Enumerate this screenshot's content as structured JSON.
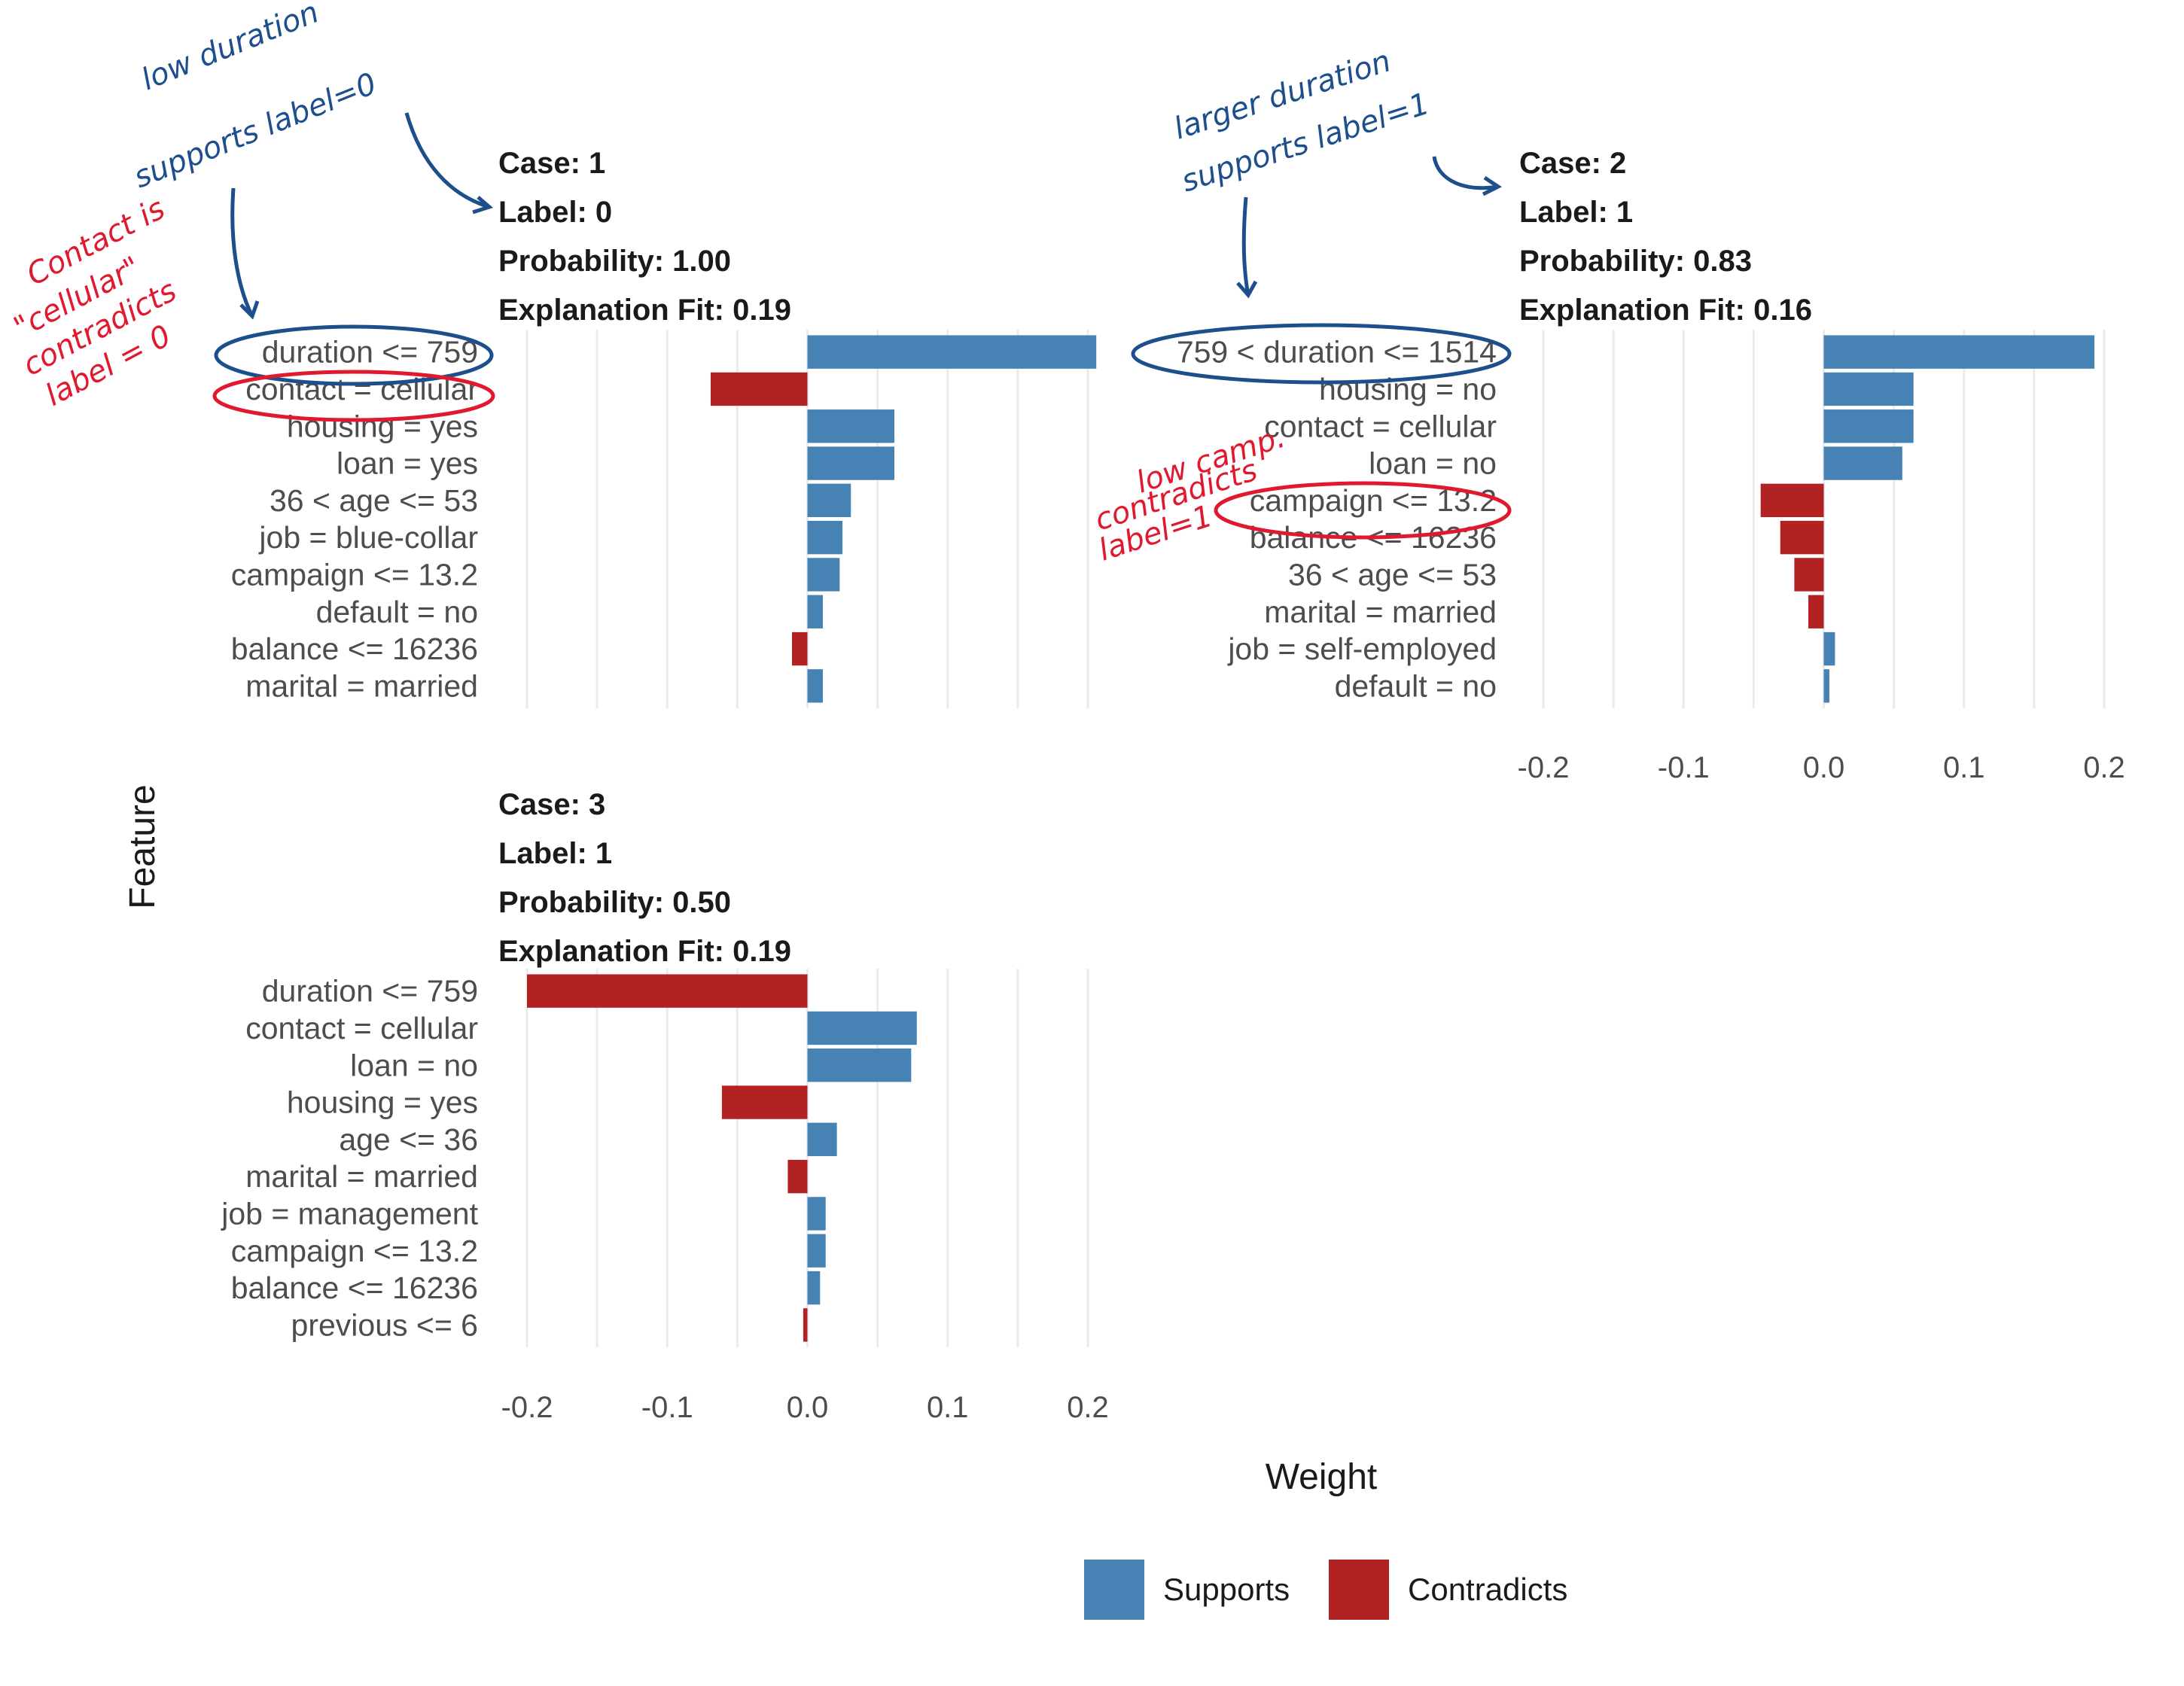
{
  "chart_data": [
    {
      "type": "bar",
      "orientation": "horizontal",
      "case_label": "Case: 1",
      "label_label": "Label: 0",
      "probability_label": "Probability: 1.00",
      "fit_label": "Explanation Fit: 0.19",
      "features": [
        "duration <= 759",
        "contact = cellular",
        "housing = yes",
        "loan = yes",
        "36 < age <= 53",
        "job = blue-collar",
        "campaign <= 13.2",
        "default = no",
        "balance <= 16236",
        "marital = married"
      ],
      "values": [
        0.206,
        -0.069,
        0.062,
        0.062,
        0.031,
        0.025,
        0.023,
        0.011,
        -0.011,
        0.011
      ],
      "xlim": [
        -0.2,
        0.2
      ],
      "show_x_axis": false
    },
    {
      "type": "bar",
      "orientation": "horizontal",
      "case_label": "Case: 2",
      "label_label": "Label: 1",
      "probability_label": "Probability: 0.83",
      "fit_label": "Explanation Fit: 0.16",
      "features": [
        "759 < duration <= 1514",
        "housing = no",
        "contact = cellular",
        "loan = no",
        "campaign <= 13.2",
        "balance <= 16236",
        "36 < age <= 53",
        "marital = married",
        "job = self-employed",
        "default = no"
      ],
      "values": [
        0.193,
        0.064,
        0.064,
        0.056,
        -0.045,
        -0.031,
        -0.021,
        -0.011,
        0.008,
        0.004
      ],
      "xlim": [
        -0.2,
        0.2
      ],
      "show_x_axis": true
    },
    {
      "type": "bar",
      "orientation": "horizontal",
      "case_label": "Case: 3",
      "label_label": "Label: 1",
      "probability_label": "Probability: 0.50",
      "fit_label": "Explanation Fit: 0.19",
      "features": [
        "duration <= 759",
        "contact = cellular",
        "loan = no",
        "housing = yes",
        "age <= 36",
        "marital = married",
        "job = management",
        "campaign <= 13.2",
        "balance <= 16236",
        "previous <= 6"
      ],
      "values": [
        -0.2,
        0.078,
        0.074,
        -0.061,
        0.021,
        -0.014,
        0.013,
        0.013,
        0.009,
        -0.003
      ],
      "xlim": [
        -0.2,
        0.2
      ],
      "show_x_axis": true
    }
  ],
  "x_ticks": [
    "-0.2",
    "-0.1",
    "0.0",
    "0.1",
    "0.2"
  ],
  "x_tick_values": [
    -0.2,
    -0.1,
    0.0,
    0.1,
    0.2
  ],
  "xlabel": "Weight",
  "ylabel": "Feature",
  "legend": {
    "position": "bottom",
    "items": [
      {
        "label": "Supports",
        "color": "#4682b4"
      },
      {
        "label": "Contradicts",
        "color": "#b22222"
      }
    ]
  },
  "colors": {
    "supports": "#4682b4",
    "contradicts": "#b22222",
    "grid": "#ebebeb",
    "annotation_blue": "#1d4f8c",
    "annotation_red": "#e0192f"
  },
  "annotations": {
    "case1_blue": [
      "low duration",
      "supports label=0"
    ],
    "case1_red": [
      "Contact is",
      "\"cellular\"",
      "contradicts",
      "label = 0"
    ],
    "case2_blue": [
      "larger duration",
      "supports label=1"
    ],
    "case2_red": [
      "low camp.",
      "contradicts",
      "label=1"
    ]
  }
}
